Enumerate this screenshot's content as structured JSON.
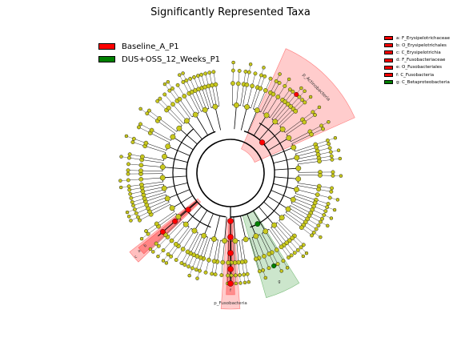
{
  "chart_data": {
    "type": "cladogram",
    "title": "Significantly Represented Taxa",
    "legend_position": "top-left",
    "classes": [
      {
        "name": "Baseline_A_P1",
        "color": "#ff0000"
      },
      {
        "name": "DUS+OSS_12_Weeks_P1",
        "color": "#008000"
      }
    ],
    "taxa_legend": [
      {
        "label": "a: F_Erysipelotrichaceae",
        "color": "#ff0000"
      },
      {
        "label": "b: O_Erysipelotrichales",
        "color": "#ff0000"
      },
      {
        "label": "c: C_Erysipelotrichia",
        "color": "#ff0000"
      },
      {
        "label": "d: F_Fusobacteriaceae",
        "color": "#ff0000"
      },
      {
        "label": "e: O_Fusobacteriales",
        "color": "#ff0000"
      },
      {
        "label": "f: C_Fusobacteria",
        "color": "#ff0000"
      },
      {
        "label": "g: C_Betaproteobacteria",
        "color": "#008000"
      }
    ],
    "highlighted_clades": [
      {
        "label": "p_Actinobacteria",
        "class": "Baseline_A_P1"
      },
      {
        "label": "p_Fusobacteria",
        "class": "Baseline_A_P1"
      },
      {
        "label": "a",
        "class": "Baseline_A_P1"
      },
      {
        "label": "b",
        "class": "Baseline_A_P1"
      },
      {
        "label": "c",
        "class": "Baseline_A_P1"
      },
      {
        "label": "d",
        "class": "Baseline_A_P1"
      },
      {
        "label": "e",
        "class": "Baseline_A_P1"
      },
      {
        "label": "f",
        "class": "Baseline_A_P1"
      },
      {
        "label": "g",
        "class": "DUS+OSS_12_Weeks_P1"
      }
    ],
    "node_colors": {
      "neutral": "#c8c81e",
      "enriched_baseline": "#ff0000",
      "enriched_dus_oss": "#008000"
    }
  }
}
